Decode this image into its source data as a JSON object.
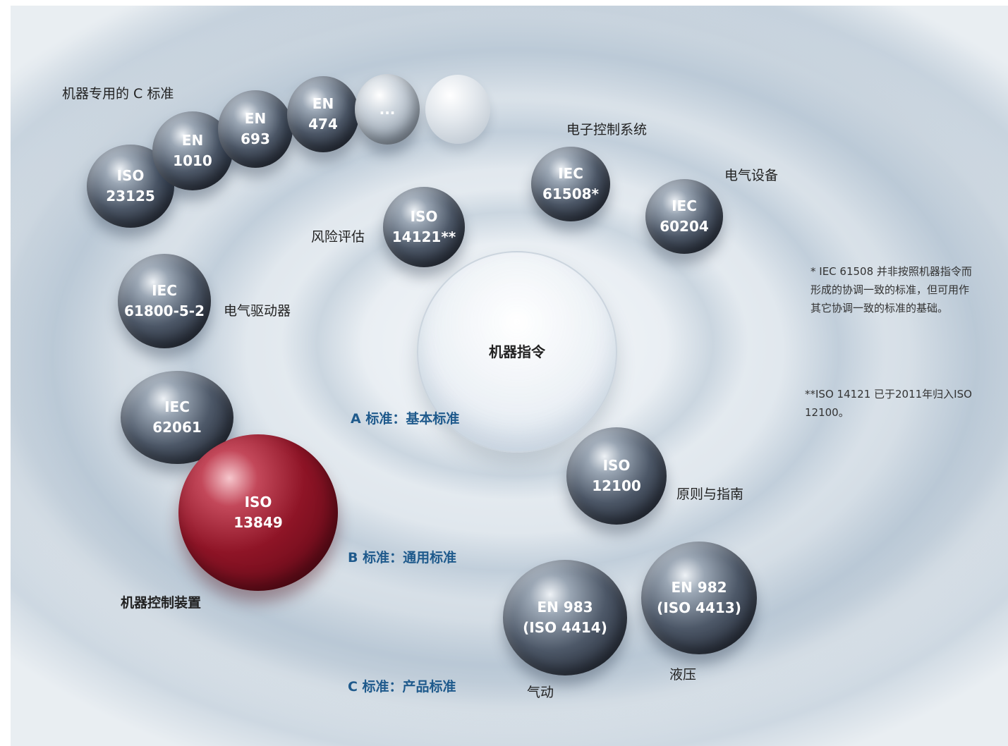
{
  "balls": {
    "iso23125": {
      "l1": "ISO",
      "l2": "23125"
    },
    "en1010": {
      "l1": "EN",
      "l2": "1010"
    },
    "en693": {
      "l1": "EN",
      "l2": "693"
    },
    "en474": {
      "l1": "EN",
      "l2": "474"
    },
    "ellipsis": {
      "l1": "..."
    },
    "iso14121": {
      "l1": "ISO",
      "l2": "14121**"
    },
    "iec61508": {
      "l1": "IEC",
      "l2": "61508*"
    },
    "iec60204": {
      "l1": "IEC",
      "l2": "60204"
    },
    "iec61800": {
      "l1": "IEC",
      "l2": "61800-5-2"
    },
    "center": {
      "l1": "机器指令"
    },
    "iec62061": {
      "l1": "IEC",
      "l2": "62061"
    },
    "iso13849": {
      "l1": "ISO",
      "l2": "13849"
    },
    "iso12100": {
      "l1": "ISO",
      "l2": "12100"
    },
    "en983": {
      "l1": "EN 983",
      "l2": "(ISO 4414)"
    },
    "en982": {
      "l1": "EN 982",
      "l2": "(ISO 4413)"
    }
  },
  "labels": {
    "c_specific": "机器专用的 C 标准",
    "electronic_control": "电子控制系统",
    "electrical_equipment": "电气设备",
    "risk_assessment": "风险评估",
    "electric_drive": "电气驱动器",
    "principles": "原则与指南",
    "machine_control": "机器控制装置",
    "hydraulic": "液压",
    "pneumatic": "气动"
  },
  "tiers": {
    "a": "A 标准：基本标准",
    "b": "B 标准：通用标准",
    "c": "C 标准：产品标准"
  },
  "notes": {
    "note1": "* IEC 61508 并非按照机器指令而形成的协调一致的标准，但可用作其它协调一致的标准的基础。",
    "note2": "**ISO 14121 已于2011年归入ISO 12100。"
  },
  "colors": {
    "tier_text": "#1f5a8c",
    "highlight_ball": "#8e1426",
    "standard_ball": "#3a4352"
  }
}
